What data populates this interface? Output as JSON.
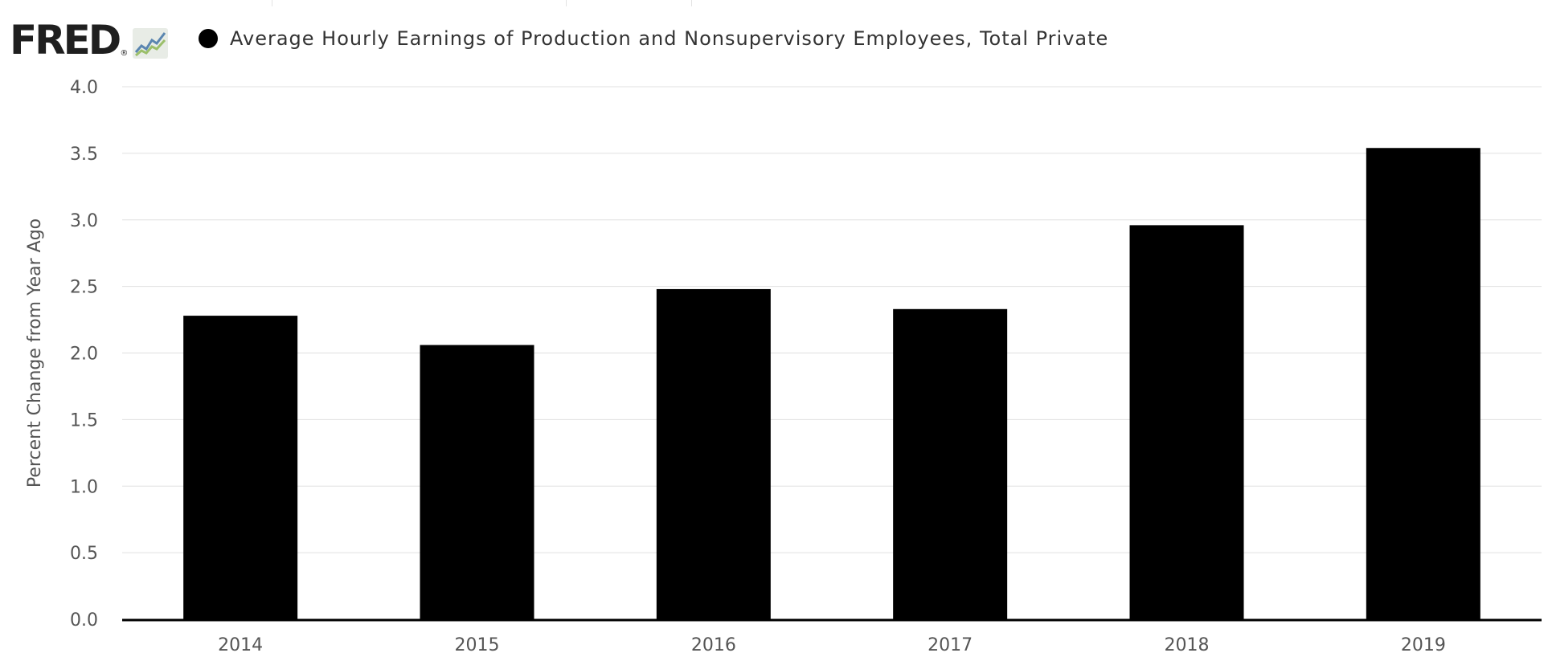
{
  "header": {
    "logo_text": "FRED",
    "logo_mark": "®",
    "logo_icon": "line-graph-icon",
    "legend_label": "Average Hourly Earnings of Production and Nonsupervisory Employees, Total Private"
  },
  "colors": {
    "series": "#000000",
    "gridline": "#e0e0e0",
    "axis_line": "#000000",
    "text": "#555555"
  },
  "chart_data": {
    "type": "bar",
    "title": "",
    "xlabel": "",
    "ylabel": "Percent Change from Year Ago",
    "categories": [
      "2014",
      "2015",
      "2016",
      "2017",
      "2018",
      "2019"
    ],
    "series": [
      {
        "name": "Average Hourly Earnings of Production and Nonsupervisory Employees, Total Private",
        "values": [
          2.28,
          2.06,
          2.48,
          2.33,
          2.96,
          3.54
        ]
      }
    ],
    "yticks": [
      "0.0",
      "0.5",
      "1.0",
      "1.5",
      "2.0",
      "2.5",
      "3.0",
      "3.5",
      "4.0"
    ],
    "ylim": [
      0,
      4
    ],
    "grid": true,
    "legend": "top-left"
  }
}
